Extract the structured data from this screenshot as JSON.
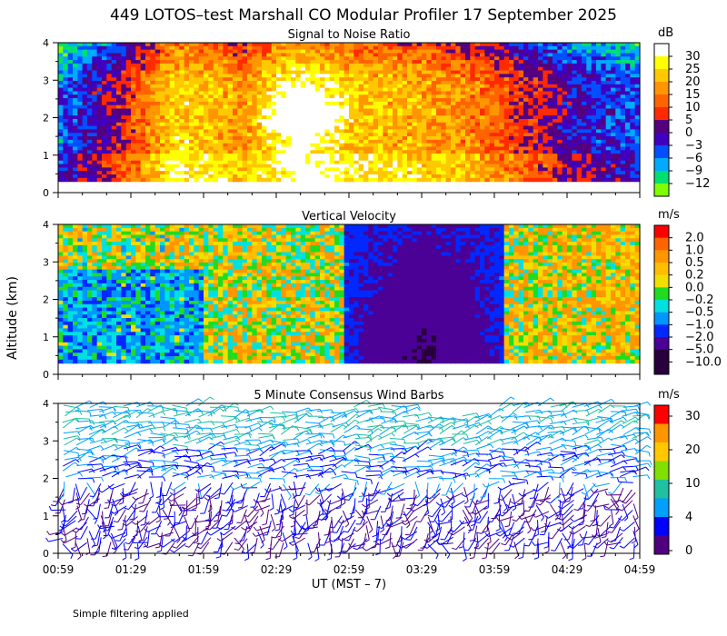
{
  "title": "449 LOTOS–test Marshall CO Modular Profiler 17 September 2025",
  "ylabel": "Altitude (km)",
  "xlabel": "UT  (MST – 7)",
  "footer": "Simple filtering applied",
  "x_ticks": [
    "00:59",
    "01:29",
    "01:59",
    "02:29",
    "02:59",
    "03:29",
    "03:59",
    "04:29",
    "04:59"
  ],
  "chart_data": [
    {
      "type": "heatmap",
      "title": "Signal to Noise Ratio",
      "ylim": [
        0,
        4
      ],
      "y_ticks": [
        "0",
        "1",
        "2",
        "3",
        "4"
      ],
      "x_range": [
        "00:59",
        "04:59"
      ],
      "colorbar": {
        "unit": "dB",
        "labels": [
          "30",
          "25",
          "20",
          "15",
          "10",
          "5",
          "0",
          "−3",
          "−6",
          "−9",
          "−12"
        ],
        "colors": [
          "#ffffff",
          "#ffff00",
          "#ffc800",
          "#ff9600",
          "#ff6400",
          "#ff2a00",
          "#55007f",
          "#4000c0",
          "#0050ff",
          "#00aaff",
          "#00e070",
          "#80ff00"
        ]
      },
      "field": {
        "rows": 40,
        "cols": 120,
        "y_coverage": [
          0.3,
          4.0
        ],
        "features": [
          {
            "t": 0.0,
            "v": 2.5
          },
          {
            "t": 0.12,
            "v": 6.0
          },
          {
            "t": 0.2,
            "v": 9.5
          },
          {
            "t": 0.32,
            "v": 8.0
          },
          {
            "t": 0.42,
            "v": 10.5
          },
          {
            "t": 0.5,
            "v": 9.0
          },
          {
            "t": 0.62,
            "v": 8.5
          },
          {
            "t": 0.72,
            "v": 7.5
          },
          {
            "t": 0.8,
            "v": 6.0
          },
          {
            "t": 0.9,
            "v": 4.0
          },
          {
            "t": 1.0,
            "v": 3.0
          }
        ]
      }
    },
    {
      "type": "heatmap",
      "title": "Vertical Velocity",
      "ylim": [
        0,
        4
      ],
      "y_ticks": [
        "0",
        "1",
        "2",
        "3",
        "4"
      ],
      "x_range": [
        "00:59",
        "04:59"
      ],
      "colorbar": {
        "unit": "m/s",
        "labels": [
          "2.0",
          "1.0",
          "0.5",
          "0.2",
          "0.0",
          "−0.2",
          "−0.5",
          "−1.0",
          "−2.0",
          "−5.0",
          "−10.0"
        ],
        "colors": [
          "#ff0000",
          "#ff6400",
          "#ff9600",
          "#ffbe00",
          "#f0e000",
          "#20dc20",
          "#00e0e0",
          "#0096ff",
          "#0028ff",
          "#4b0096",
          "#28003c",
          "#28003c"
        ]
      },
      "field": {
        "rows": 40,
        "cols": 120,
        "y_coverage": [
          0.3,
          4.0
        ],
        "downdraft_span": [
          0.49,
          0.77
        ]
      }
    },
    {
      "type": "scatter",
      "title": "5 Minute Consensus Wind Barbs",
      "ylim": [
        0,
        4
      ],
      "y_ticks": [
        "0",
        "1",
        "2",
        "3",
        "4"
      ],
      "x_range": [
        "00:59",
        "04:59"
      ],
      "colorbar": {
        "unit": "m/s",
        "labels": [
          "30",
          "20",
          "10",
          "4",
          "0"
        ],
        "colors": [
          "#ff0000",
          "#ff9600",
          "#ffc800",
          "#80e000",
          "#20c0a0",
          "#00a0ff",
          "#0000ff",
          "#50007f"
        ]
      },
      "barbs": {
        "columns": 48,
        "levels": 26,
        "y_range": [
          0.2,
          4.0
        ]
      }
    }
  ]
}
